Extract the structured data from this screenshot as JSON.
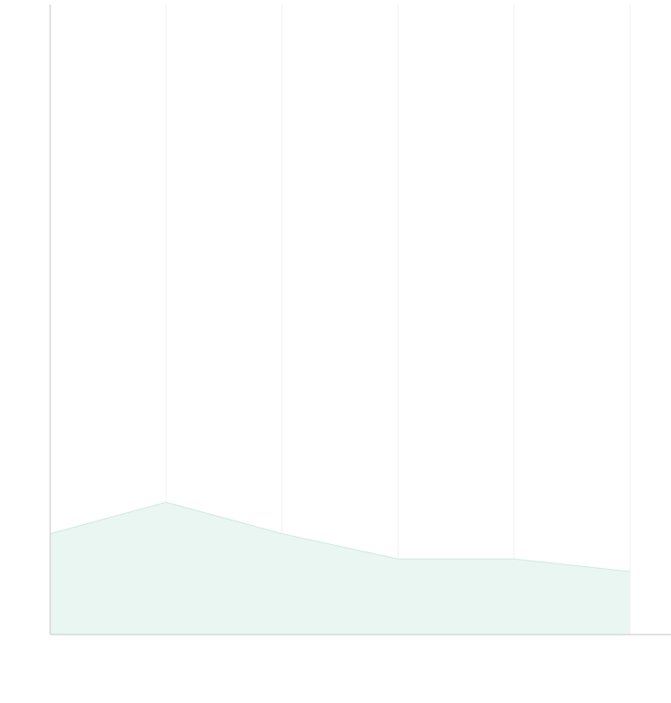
{
  "chart_data": {
    "type": "area",
    "categories": [
      null,
      null,
      null,
      null,
      null,
      null
    ],
    "values": [
      16,
      21,
      16,
      12,
      12,
      10
    ],
    "color": "#e9f6f1",
    "line_color": "#cfe9df",
    "ylim": [
      0,
      100
    ],
    "grid": true
  }
}
